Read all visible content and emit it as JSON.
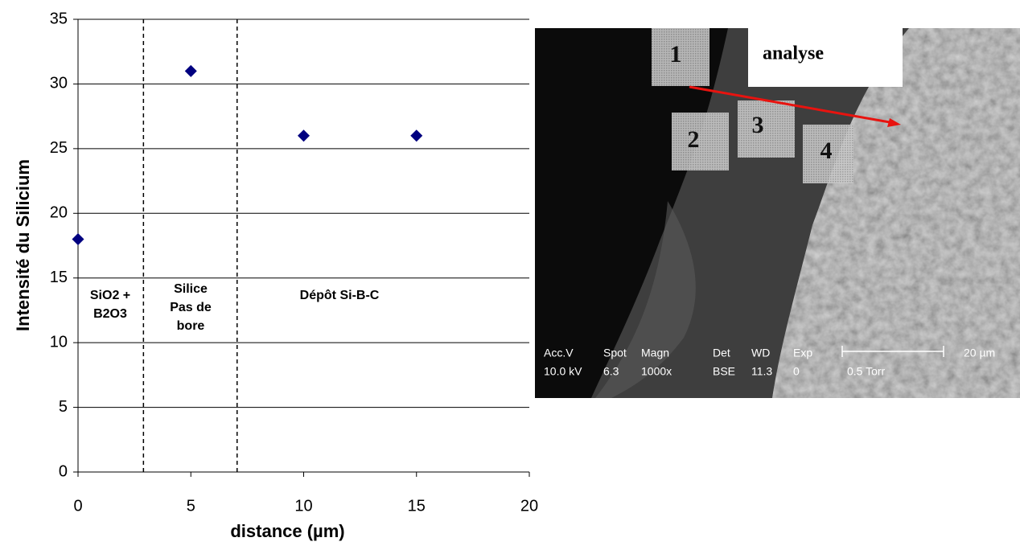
{
  "chart_data": {
    "type": "scatter",
    "x": [
      0,
      5,
      10,
      15
    ],
    "values": [
      18,
      31,
      26,
      26
    ],
    "color": "#000080",
    "xlim": [
      0,
      20
    ],
    "xticks": [
      0,
      5,
      10,
      15,
      20
    ],
    "ylim": [
      0,
      35
    ],
    "yticks": [
      0,
      5,
      10,
      15,
      20,
      25,
      30,
      35
    ],
    "grid": true,
    "xlabel": "distance (µm)",
    "ylabel": "Intensité du Silicium",
    "dividers": [
      2.9,
      7.05
    ],
    "annotations": [
      {
        "lines": [
          "SiO2 +",
          "B2O3"
        ]
      },
      {
        "lines": [
          "Silice",
          "Pas de",
          "bore"
        ]
      },
      {
        "lines": [
          "Dépôt Si-B-C"
        ]
      }
    ]
  },
  "image": {
    "boxes": [
      "1",
      "2",
      "3",
      "4"
    ],
    "caption": "analyse",
    "info": [
      [
        "Acc.V",
        "Spot",
        "Magn",
        "Det",
        "WD",
        "Exp",
        "20 µm"
      ],
      [
        "10.0 kV",
        "6.3",
        "1000x",
        "BSE",
        "11.3",
        "0",
        "0.5 Torr"
      ]
    ]
  }
}
